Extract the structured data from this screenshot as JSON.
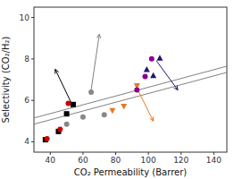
{
  "chart_data": {
    "type": "scatter",
    "xlabel": "CO₂ Permeability (Barrer)",
    "ylabel": "Selectivity (CO₂/H₂)",
    "xlim": [
      30,
      148
    ],
    "ylim": [
      3.5,
      10.5
    ],
    "xticks": [
      40,
      60,
      80,
      100,
      120,
      140
    ],
    "yticks": [
      4,
      6,
      8,
      10
    ],
    "series": [
      {
        "type": "line",
        "color": "gray",
        "x": [
          30,
          148
        ],
        "values": [
          4.85,
          7.35
        ]
      },
      {
        "type": "line",
        "color": "gray",
        "x": [
          30,
          148
        ],
        "values": [
          5.15,
          7.65
        ]
      },
      {
        "type": "scatter",
        "color": "#000000",
        "marker": "square",
        "x": [
          37,
          45,
          50,
          54
        ],
        "values": [
          4.1,
          4.5,
          5.35,
          5.8
        ]
      },
      {
        "type": "scatter",
        "color": "#cc0000",
        "marker": "circle",
        "x": [
          38,
          46,
          51
        ],
        "values": [
          4.15,
          4.6,
          5.85
        ]
      },
      {
        "type": "scatter",
        "color": "#888888",
        "marker": "circle",
        "x": [
          50,
          60,
          65,
          73
        ],
        "values": [
          4.85,
          5.2,
          6.4,
          5.3
        ]
      },
      {
        "type": "scatter",
        "color": "#e87820",
        "marker": "triangle-down",
        "x": [
          78,
          85,
          93
        ],
        "values": [
          5.5,
          5.7,
          6.7
        ]
      },
      {
        "type": "scatter",
        "color": "#8B008B",
        "marker": "circle",
        "x": [
          93,
          98,
          102
        ],
        "values": [
          6.5,
          7.15,
          8.0
        ]
      },
      {
        "type": "scatter",
        "color": "#191970",
        "marker": "triangle-up",
        "x": [
          99,
          103,
          107
        ],
        "values": [
          7.5,
          7.2,
          8.05
        ]
      }
    ],
    "arrows": [
      {
        "from": [
          53,
          5.85
        ],
        "to": [
          43,
          7.5
        ],
        "color": "black"
      },
      {
        "from": [
          65,
          6.5
        ],
        "to": [
          70,
          9.2
        ],
        "color": "gray"
      },
      {
        "from": [
          92,
          6.75
        ],
        "to": [
          103,
          5.0
        ],
        "color": "#e87820"
      },
      {
        "from": [
          105,
          7.9
        ],
        "to": [
          118,
          6.5
        ],
        "color": "#191970"
      }
    ]
  }
}
